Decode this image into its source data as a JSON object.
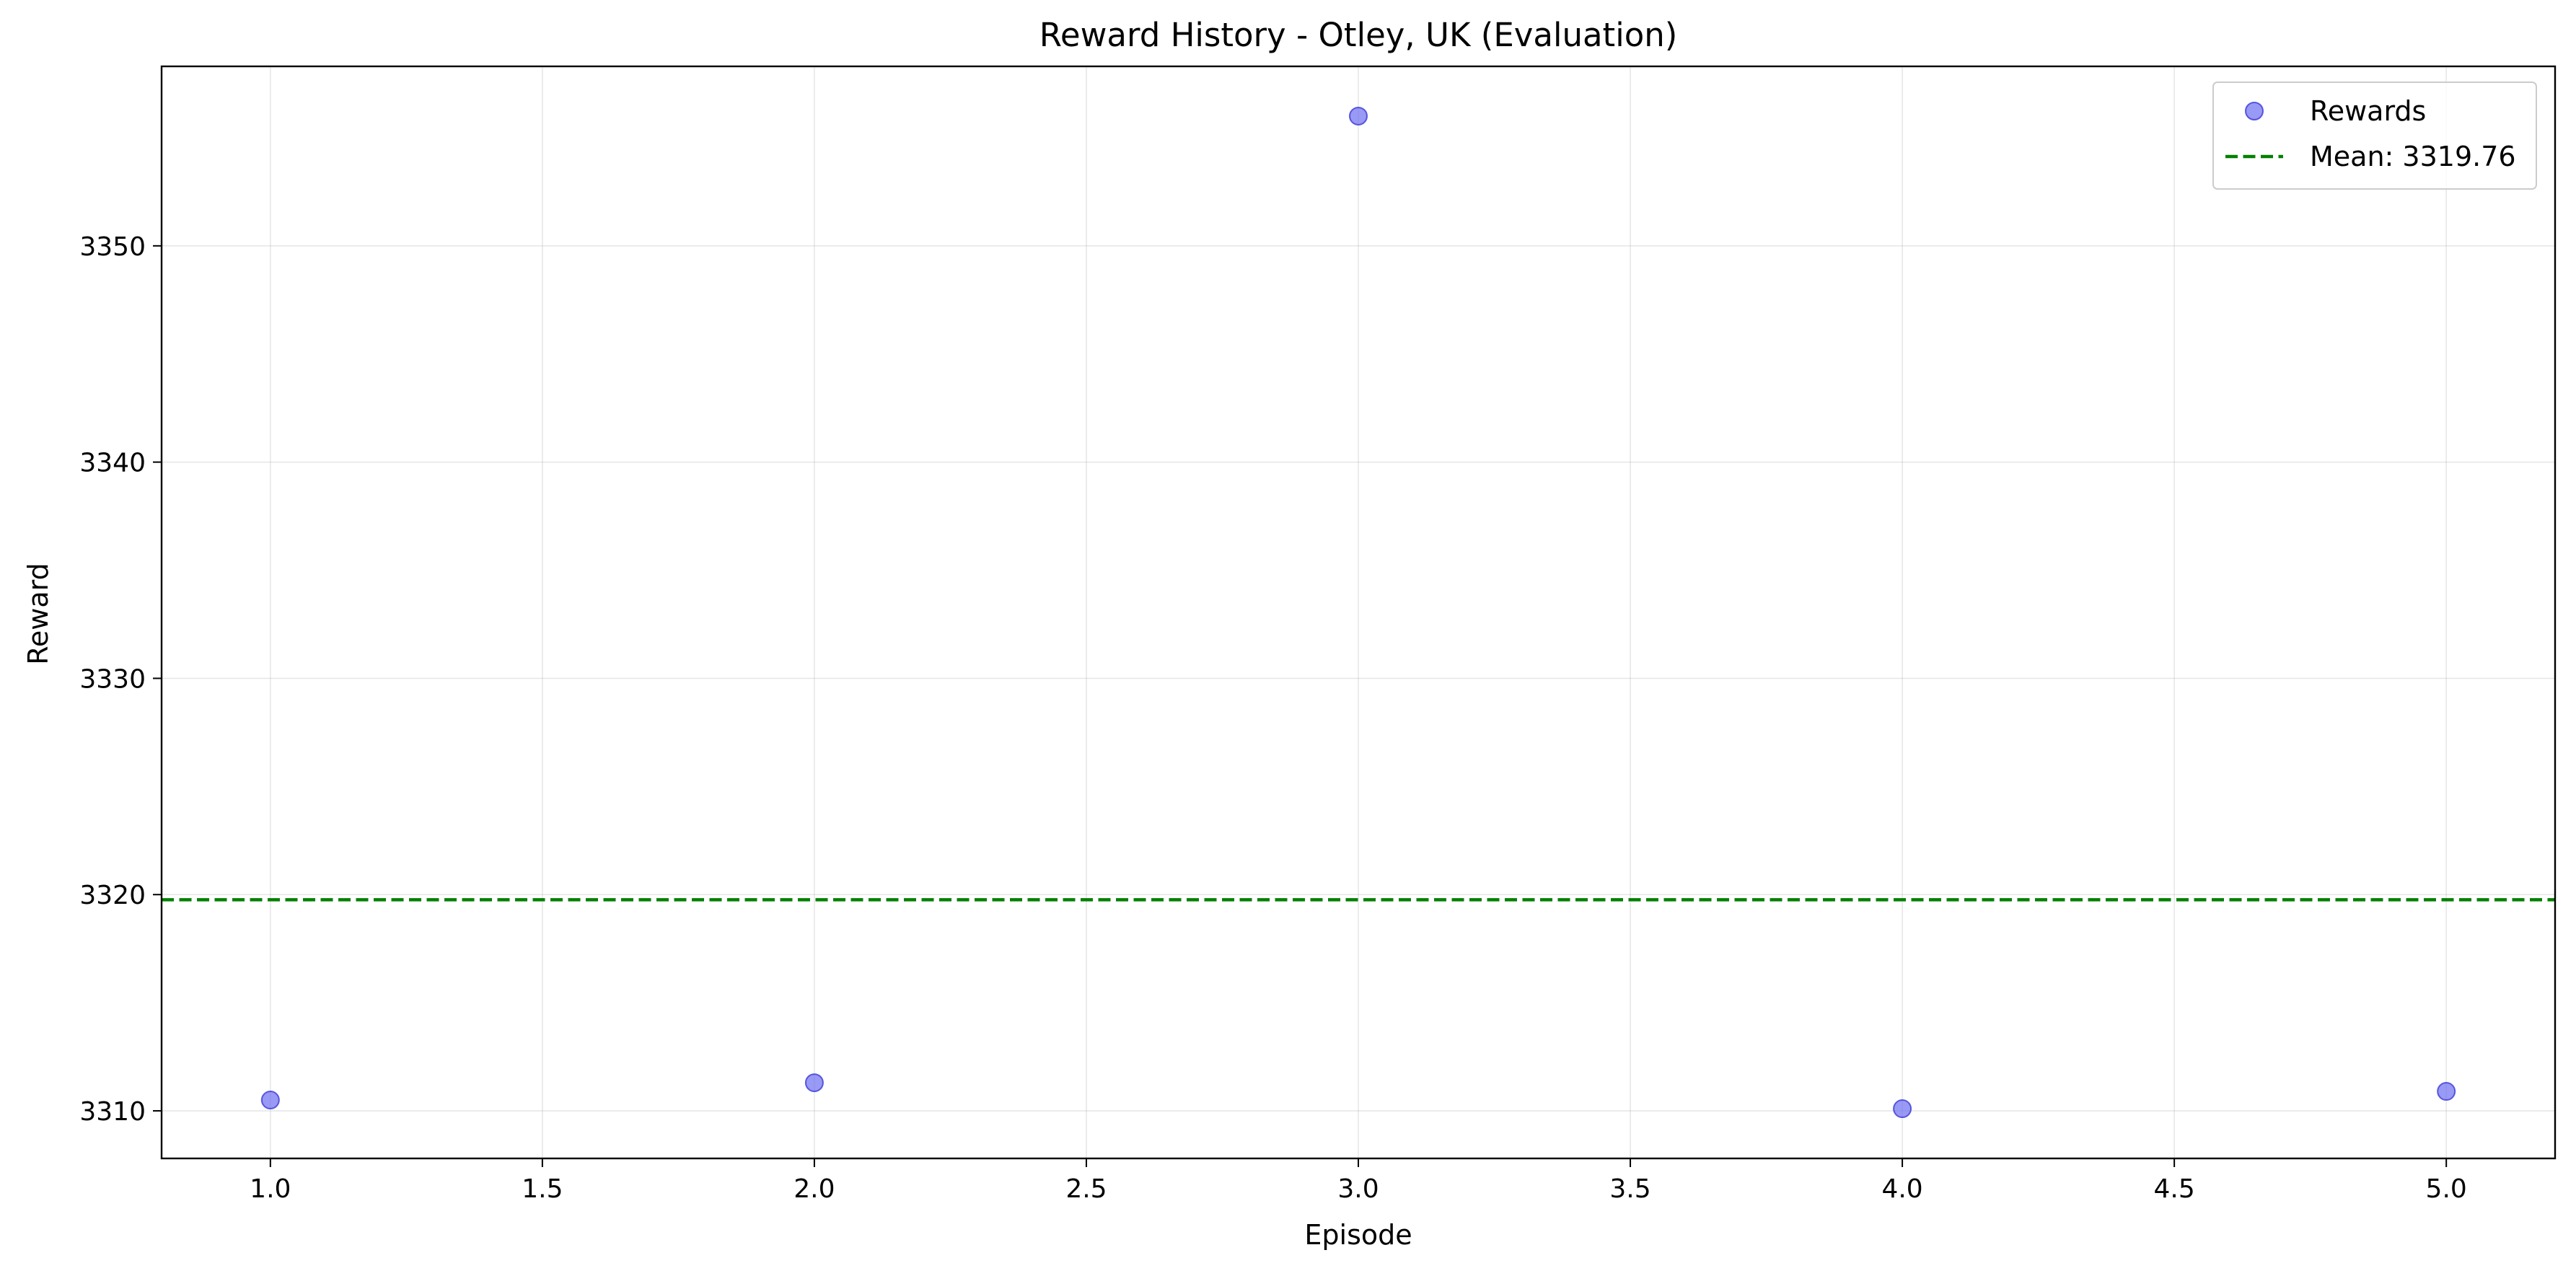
{
  "chart_data": {
    "type": "scatter",
    "title": "Reward History - Otley, UK (Evaluation)",
    "xlabel": "Episode",
    "ylabel": "Reward",
    "xlim": [
      0.8,
      5.2
    ],
    "ylim": [
      3307.8,
      3358.3
    ],
    "xticks": [
      1.0,
      1.5,
      2.0,
      2.5,
      3.0,
      3.5,
      4.0,
      4.5,
      5.0
    ],
    "xtick_labels": [
      "1.0",
      "1.5",
      "2.0",
      "2.5",
      "3.0",
      "3.5",
      "4.0",
      "4.5",
      "5.0"
    ],
    "yticks": [
      3310,
      3320,
      3330,
      3340,
      3350
    ],
    "ytick_labels": [
      "3310",
      "3320",
      "3330",
      "3340",
      "3350"
    ],
    "grid": true,
    "legend_position": "top-right",
    "series": [
      {
        "name": "Rewards",
        "kind": "scatter",
        "color": "#6e6ef2",
        "x": [
          1,
          2,
          3,
          4,
          5
        ],
        "y": [
          3310.5,
          3311.3,
          3356.0,
          3310.1,
          3310.9
        ]
      },
      {
        "name": "Mean: 3319.76",
        "kind": "hline",
        "color": "#008000",
        "style": "dashed",
        "y": 3319.76
      }
    ]
  }
}
